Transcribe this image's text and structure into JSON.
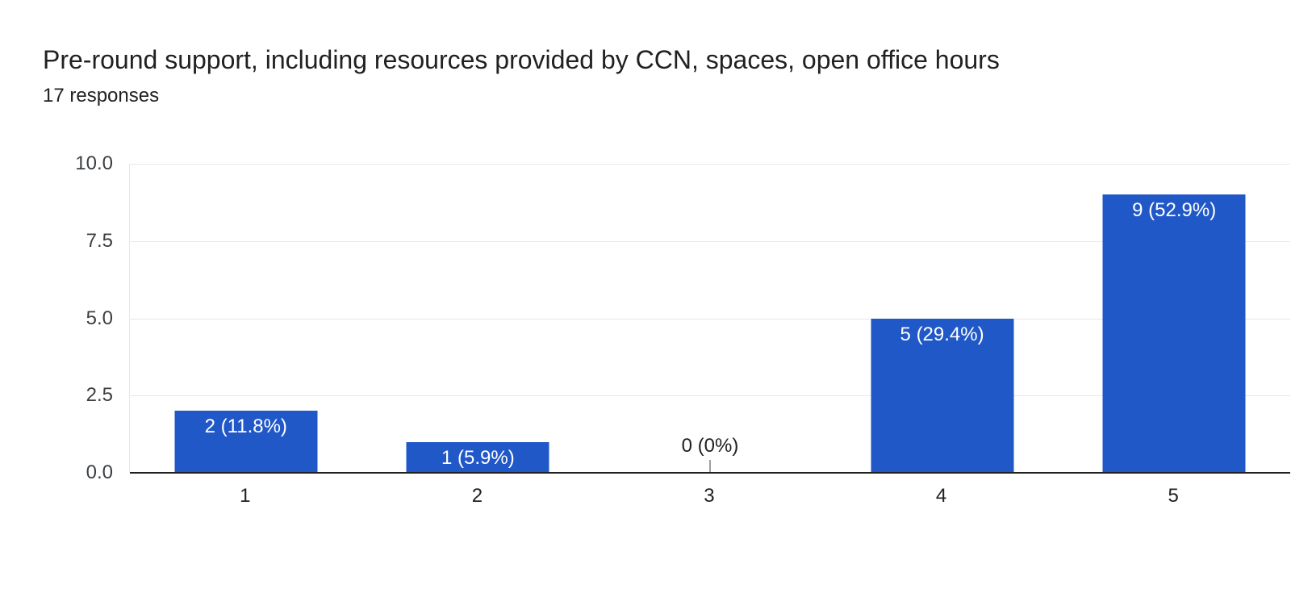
{
  "chart_data": {
    "type": "bar",
    "title": "Pre-round support, including resources provided by CCN, spaces, open office hours",
    "subtitle": "17 responses",
    "total_responses": 17,
    "categories": [
      "1",
      "2",
      "3",
      "4",
      "5"
    ],
    "values": [
      2,
      1,
      0,
      5,
      9
    ],
    "bar_labels": [
      "2 (11.8%)",
      "1 (5.9%)",
      "0 (0%)",
      "5 (29.4%)",
      "9 (52.9%)"
    ],
    "xlabel": "",
    "ylabel": "",
    "ylim": [
      0,
      10
    ],
    "y_tick_labels": [
      "10.0",
      "7.5",
      "5.0",
      "2.5",
      "0.0"
    ],
    "y_tick_values": [
      10,
      7.5,
      5,
      2.5,
      0
    ],
    "grid": true,
    "legend": "none",
    "colors": {
      "bar": "#2158c8",
      "gridline": "#e8e8e8",
      "axis_line": "#212121",
      "y_tick_label": "#3c4043",
      "x_tick_label": "#212121",
      "bar_label": "#ffffff",
      "zero_label": "#212121",
      "zero_callout": "#9e9e9e",
      "background": "#ffffff"
    }
  }
}
